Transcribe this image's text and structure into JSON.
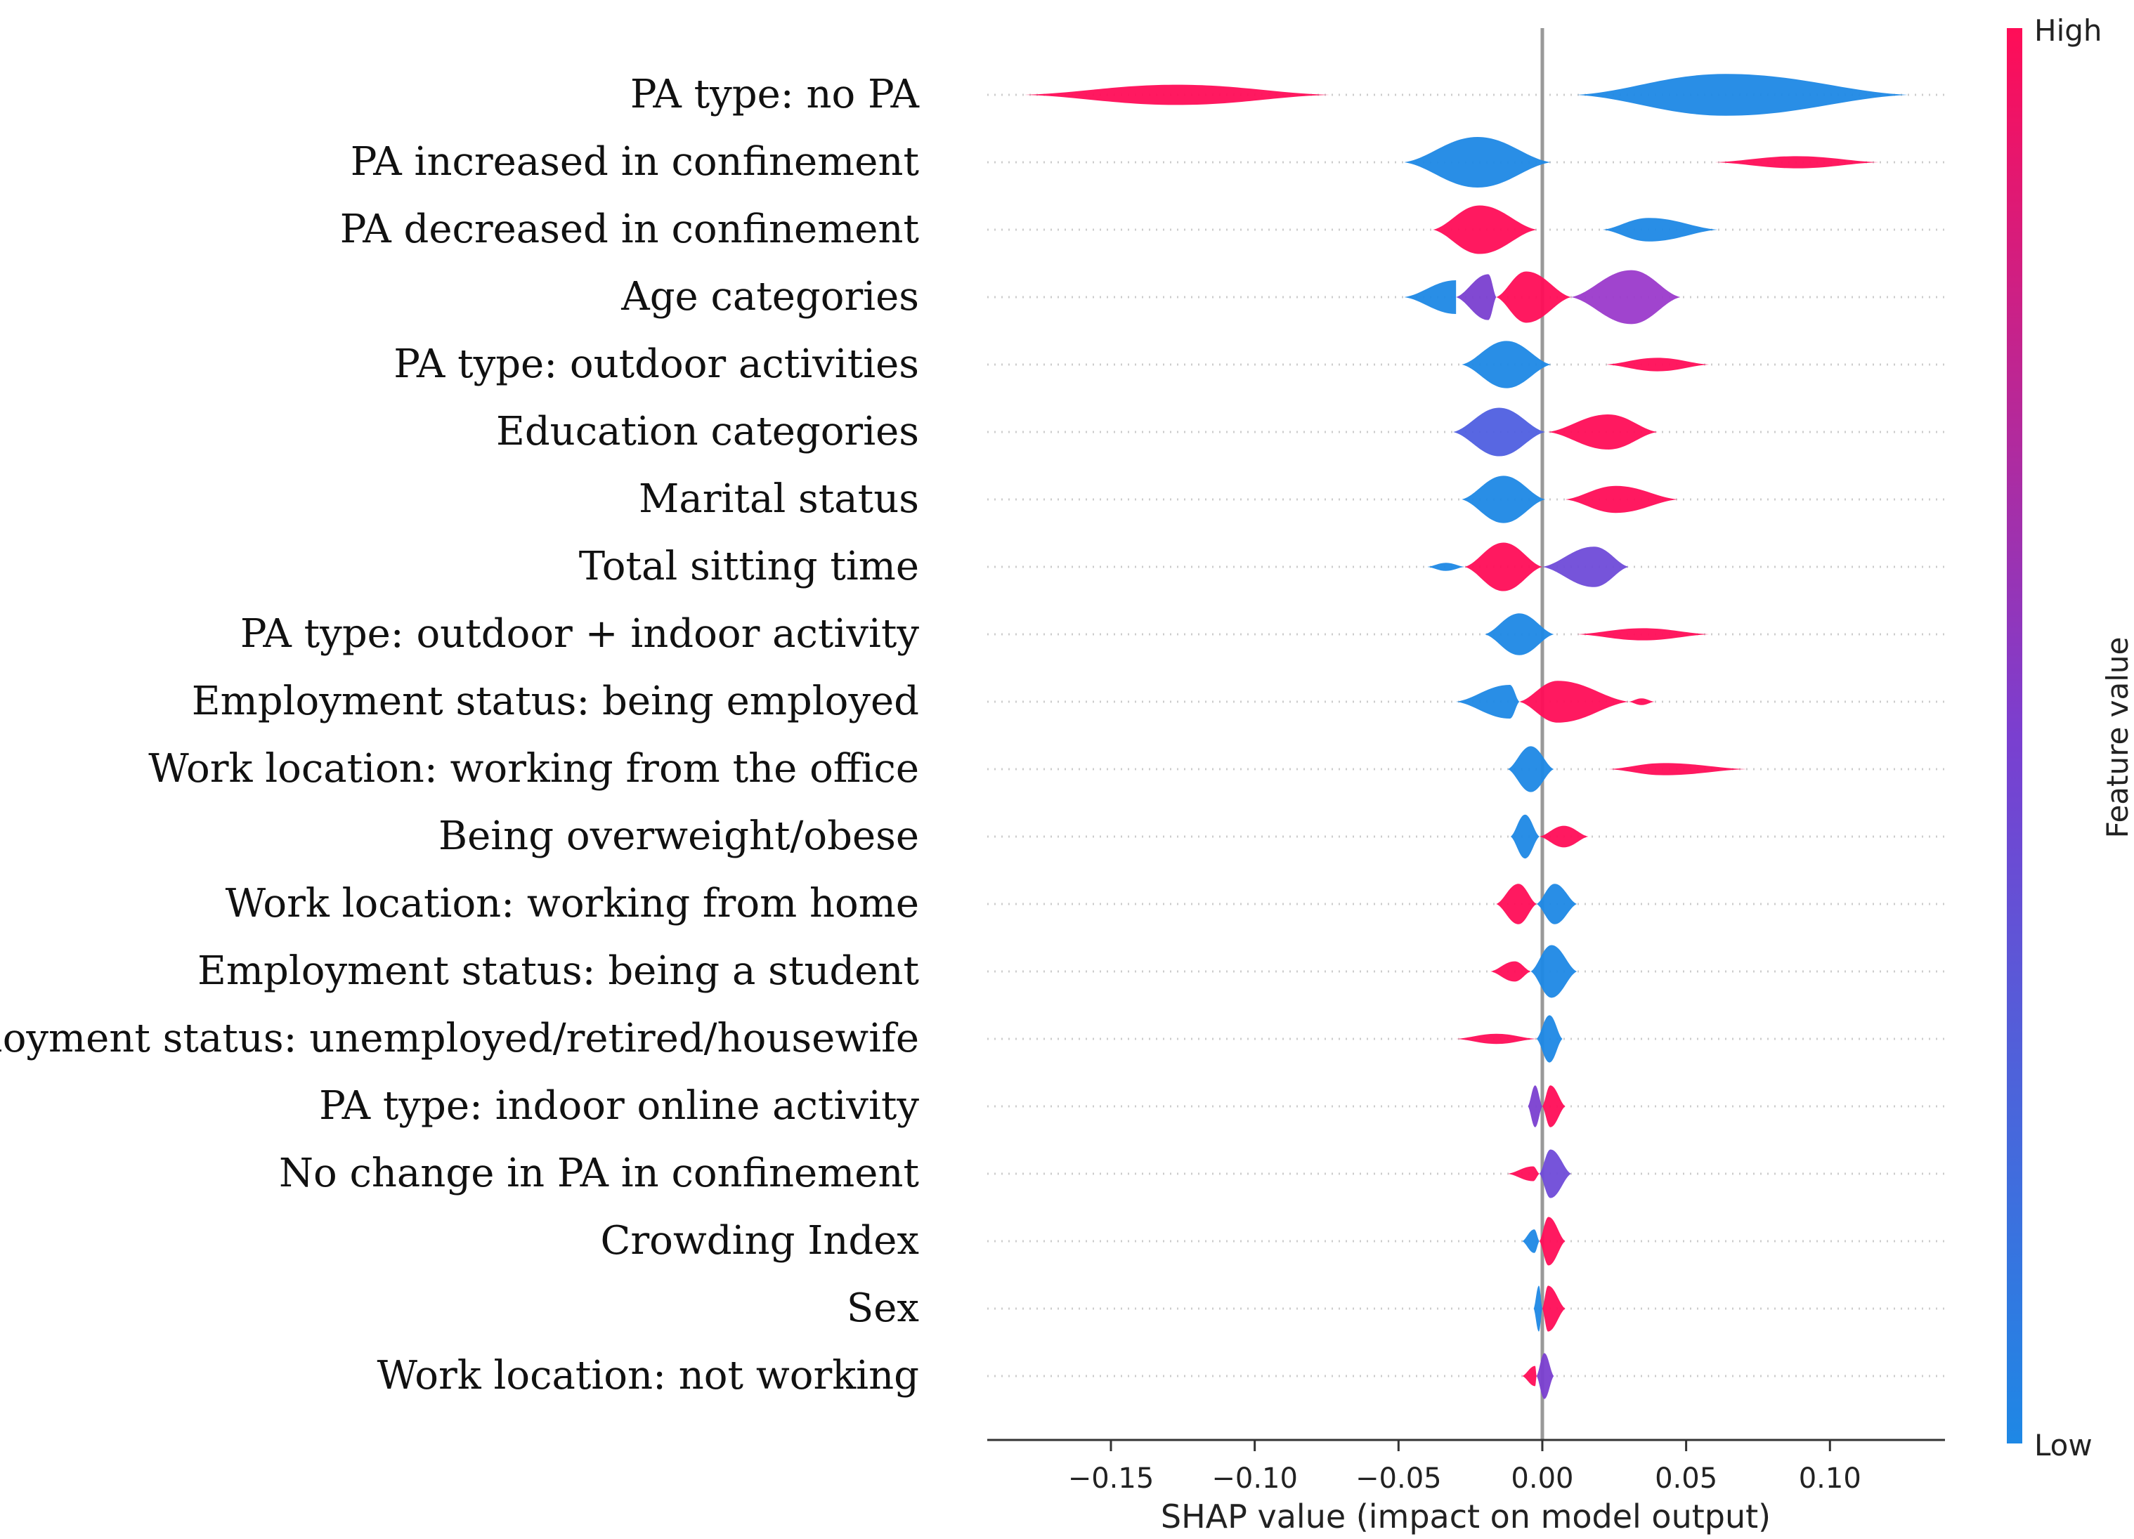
{
  "chart_data": {
    "type": "violin",
    "title": "",
    "xlabel": "SHAP value (impact on model output)",
    "ylabel": "",
    "xlim": [
      -0.193,
      0.14
    ],
    "x_ticks": [
      -0.15,
      -0.1,
      -0.05,
      0.0,
      0.05,
      0.1
    ],
    "x_tick_labels": [
      "−0.15",
      "−0.10",
      "−0.05",
      "0.00",
      "0.05",
      "0.10"
    ],
    "colorbar": {
      "label": "Feature value",
      "high_label": "High",
      "low_label": "Low",
      "low_color": "#1E88E5",
      "mid_color": "#7A3FD0",
      "high_color": "#FF0D57"
    },
    "features": [
      {
        "name": "PA type: no PA",
        "parts": [
          {
            "min": -0.18,
            "max": -0.074,
            "color": "#FF0D57",
            "width": 0.3,
            "peak": 0.5
          },
          {
            "min": 0.012,
            "max": 0.127,
            "color": "#1E88E5",
            "width": 0.62,
            "peak": 0.45
          }
        ]
      },
      {
        "name": "PA increased in confinement",
        "parts": [
          {
            "min": -0.048,
            "max": 0.003,
            "color": "#1E88E5",
            "width": 0.75,
            "peak": 0.5
          },
          {
            "min": 0.06,
            "max": 0.117,
            "color": "#FF0D57",
            "width": 0.18,
            "peak": 0.5
          }
        ]
      },
      {
        "name": "PA decreased in confinement",
        "parts": [
          {
            "min": -0.038,
            "max": -0.002,
            "color": "#FF0D57",
            "width": 0.72,
            "peak": 0.45
          },
          {
            "min": 0.021,
            "max": 0.061,
            "color": "#1E88E5",
            "width": 0.35,
            "peak": 0.4
          }
        ]
      },
      {
        "name": "Age categories",
        "parts": [
          {
            "min": -0.048,
            "max": -0.03,
            "color": "#1E88E5",
            "width": 0.5,
            "peak": 1.0
          },
          {
            "min": -0.03,
            "max": -0.016,
            "color": "#7A3FD0",
            "width": 0.68,
            "peak": 0.8
          },
          {
            "min": -0.016,
            "max": 0.01,
            "color": "#FF0D57",
            "width": 0.76,
            "peak": 0.4
          },
          {
            "min": 0.01,
            "max": 0.048,
            "color": "#9B3ACB",
            "width": 0.8,
            "peak": 0.55
          }
        ]
      },
      {
        "name": "PA type: outdoor activities",
        "parts": [
          {
            "min": -0.028,
            "max": 0.003,
            "color": "#1E88E5",
            "width": 0.7,
            "peak": 0.5
          },
          {
            "min": 0.022,
            "max": 0.058,
            "color": "#FF0D57",
            "width": 0.2,
            "peak": 0.5
          }
        ]
      },
      {
        "name": "Education categories",
        "parts": [
          {
            "min": -0.031,
            "max": 0.001,
            "color": "#4F5FE0",
            "width": 0.72,
            "peak": 0.5
          },
          {
            "min": 0.002,
            "max": 0.04,
            "color": "#FF0D57",
            "width": 0.52,
            "peak": 0.55
          }
        ]
      },
      {
        "name": "Marital  status",
        "parts": [
          {
            "min": -0.028,
            "max": 0.001,
            "color": "#1E88E5",
            "width": 0.7,
            "peak": 0.5
          },
          {
            "min": 0.008,
            "max": 0.047,
            "color": "#FF0D57",
            "width": 0.4,
            "peak": 0.45
          }
        ]
      },
      {
        "name": "Total sitting time",
        "parts": [
          {
            "min": -0.04,
            "max": -0.027,
            "color": "#1E88E5",
            "width": 0.12,
            "peak": 0.5
          },
          {
            "min": -0.027,
            "max": 0.0,
            "color": "#FF0D57",
            "width": 0.72,
            "peak": 0.5
          },
          {
            "min": 0.0,
            "max": 0.03,
            "color": "#6F4BD8",
            "width": 0.6,
            "peak": 0.6
          }
        ]
      },
      {
        "name": "PA type: outdoor + indoor activity",
        "parts": [
          {
            "min": -0.02,
            "max": 0.004,
            "color": "#1E88E5",
            "width": 0.62,
            "peak": 0.5
          },
          {
            "min": 0.012,
            "max": 0.058,
            "color": "#FF0D57",
            "width": 0.18,
            "peak": 0.5
          }
        ]
      },
      {
        "name": "Employment status: being employed",
        "parts": [
          {
            "min": -0.03,
            "max": -0.008,
            "color": "#1E88E5",
            "width": 0.5,
            "peak": 0.85
          },
          {
            "min": -0.008,
            "max": 0.03,
            "color": "#FF0D57",
            "width": 0.62,
            "peak": 0.35
          },
          {
            "min": 0.03,
            "max": 0.039,
            "color": "#FF0D57",
            "width": 0.1,
            "peak": 0.5
          }
        ]
      },
      {
        "name": "Work location: working from the office",
        "parts": [
          {
            "min": -0.012,
            "max": 0.004,
            "color": "#1E88E5",
            "width": 0.68,
            "peak": 0.5
          },
          {
            "min": 0.023,
            "max": 0.071,
            "color": "#FF0D57",
            "width": 0.18,
            "peak": 0.4
          }
        ]
      },
      {
        "name": "Being overweight/obese",
        "parts": [
          {
            "min": -0.011,
            "max": -0.001,
            "color": "#1E88E5",
            "width": 0.65,
            "peak": 0.5
          },
          {
            "min": -0.001,
            "max": 0.016,
            "color": "#FF0D57",
            "width": 0.32,
            "peak": 0.5
          }
        ]
      },
      {
        "name": "Work location: working from home",
        "parts": [
          {
            "min": -0.016,
            "max": -0.002,
            "color": "#FF0D57",
            "width": 0.6,
            "peak": 0.55
          },
          {
            "min": -0.002,
            "max": 0.012,
            "color": "#1E88E5",
            "width": 0.6,
            "peak": 0.45
          }
        ]
      },
      {
        "name": "Employment status: being a student",
        "parts": [
          {
            "min": -0.018,
            "max": -0.004,
            "color": "#FF0D57",
            "width": 0.3,
            "peak": 0.6
          },
          {
            "min": -0.004,
            "max": 0.012,
            "color": "#1E88E5",
            "width": 0.78,
            "peak": 0.45
          }
        ]
      },
      {
        "name": "Employment status: unemployed/retired/housewife",
        "parts": [
          {
            "min": -0.03,
            "max": -0.002,
            "color": "#FF0D57",
            "width": 0.15,
            "peak": 0.5
          },
          {
            "min": -0.002,
            "max": 0.007,
            "color": "#1E88E5",
            "width": 0.7,
            "peak": 0.5
          }
        ]
      },
      {
        "name": "PA type: indoor online activity",
        "parts": [
          {
            "min": -0.005,
            "max": 0.0,
            "color": "#7A3FD0",
            "width": 0.62,
            "peak": 0.5
          },
          {
            "min": 0.0,
            "max": 0.008,
            "color": "#FF0D57",
            "width": 0.62,
            "peak": 0.35
          }
        ]
      },
      {
        "name": "No change in PA in confinement",
        "parts": [
          {
            "min": -0.012,
            "max": -0.001,
            "color": "#FF0D57",
            "width": 0.22,
            "peak": 0.8
          },
          {
            "min": -0.001,
            "max": 0.01,
            "color": "#6F4BD8",
            "width": 0.72,
            "peak": 0.35
          }
        ]
      },
      {
        "name": "Crowding Index",
        "parts": [
          {
            "min": -0.007,
            "max": -0.001,
            "color": "#1E88E5",
            "width": 0.35,
            "peak": 0.7
          },
          {
            "min": -0.001,
            "max": 0.008,
            "color": "#FF0D57",
            "width": 0.72,
            "peak": 0.35
          }
        ]
      },
      {
        "name": "Sex",
        "parts": [
          {
            "min": -0.003,
            "max": 0.0,
            "color": "#1E88E5",
            "width": 0.68,
            "peak": 0.6
          },
          {
            "min": 0.0,
            "max": 0.008,
            "color": "#FF0D57",
            "width": 0.68,
            "peak": 0.25
          }
        ]
      },
      {
        "name": "Work location: not working",
        "parts": [
          {
            "min": -0.007,
            "max": -0.002,
            "color": "#FF0D57",
            "width": 0.3,
            "peak": 0.9
          },
          {
            "min": -0.002,
            "max": 0.004,
            "color": "#7A3FD0",
            "width": 0.68,
            "peak": 0.45
          }
        ]
      }
    ]
  }
}
